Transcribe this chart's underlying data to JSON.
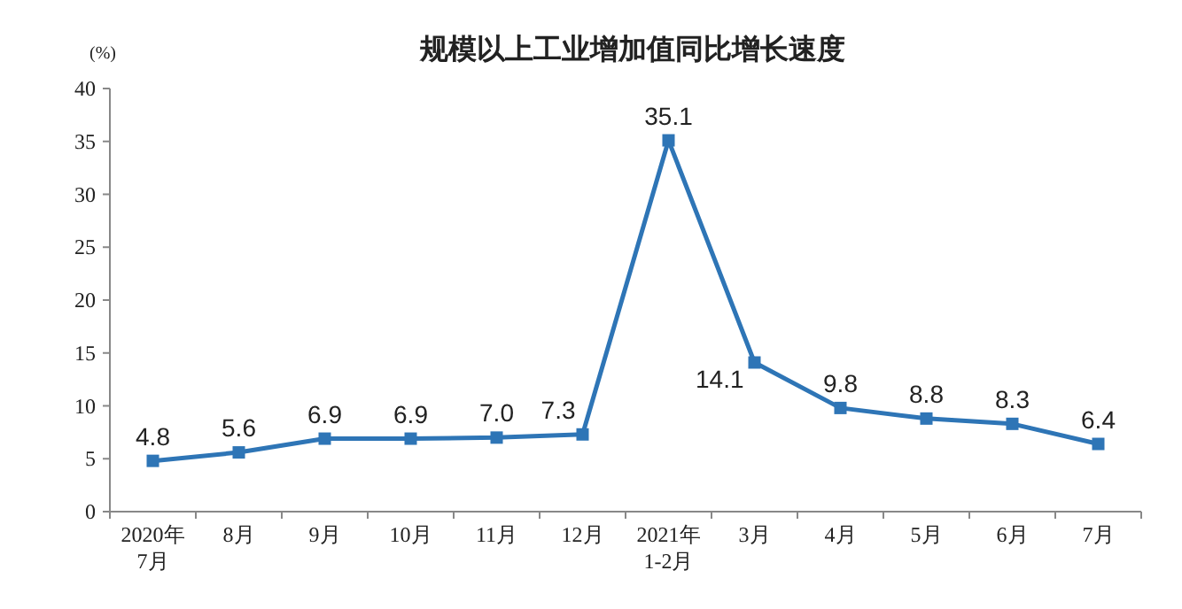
{
  "chart_data": {
    "type": "line",
    "title": "规模以上工业增加值同比增长速度",
    "ylabel": "(%)",
    "categories": [
      "2020年\n7月",
      "8月",
      "9月",
      "10月",
      "11月",
      "12月",
      "2021年\n1-2月",
      "3月",
      "4月",
      "5月",
      "6月",
      "7月"
    ],
    "series": [
      {
        "color": "#2e75b6",
        "values": [
          4.8,
          5.6,
          6.9,
          6.9,
          7.0,
          7.3,
          35.1,
          14.1,
          9.8,
          8.8,
          8.3,
          6.4
        ],
        "value_labels": [
          "4.8",
          "5.6",
          "6.9",
          "6.9",
          "7.0",
          "7.3",
          "35.1",
          "14.1",
          "9.8",
          "8.8",
          "8.3",
          "6.4"
        ]
      }
    ],
    "ylim": [
      0,
      40
    ],
    "yticks": [
      0,
      5,
      10,
      15,
      20,
      25,
      30,
      35,
      40
    ],
    "marker": "square",
    "line_style": "solid",
    "grid": false
  }
}
